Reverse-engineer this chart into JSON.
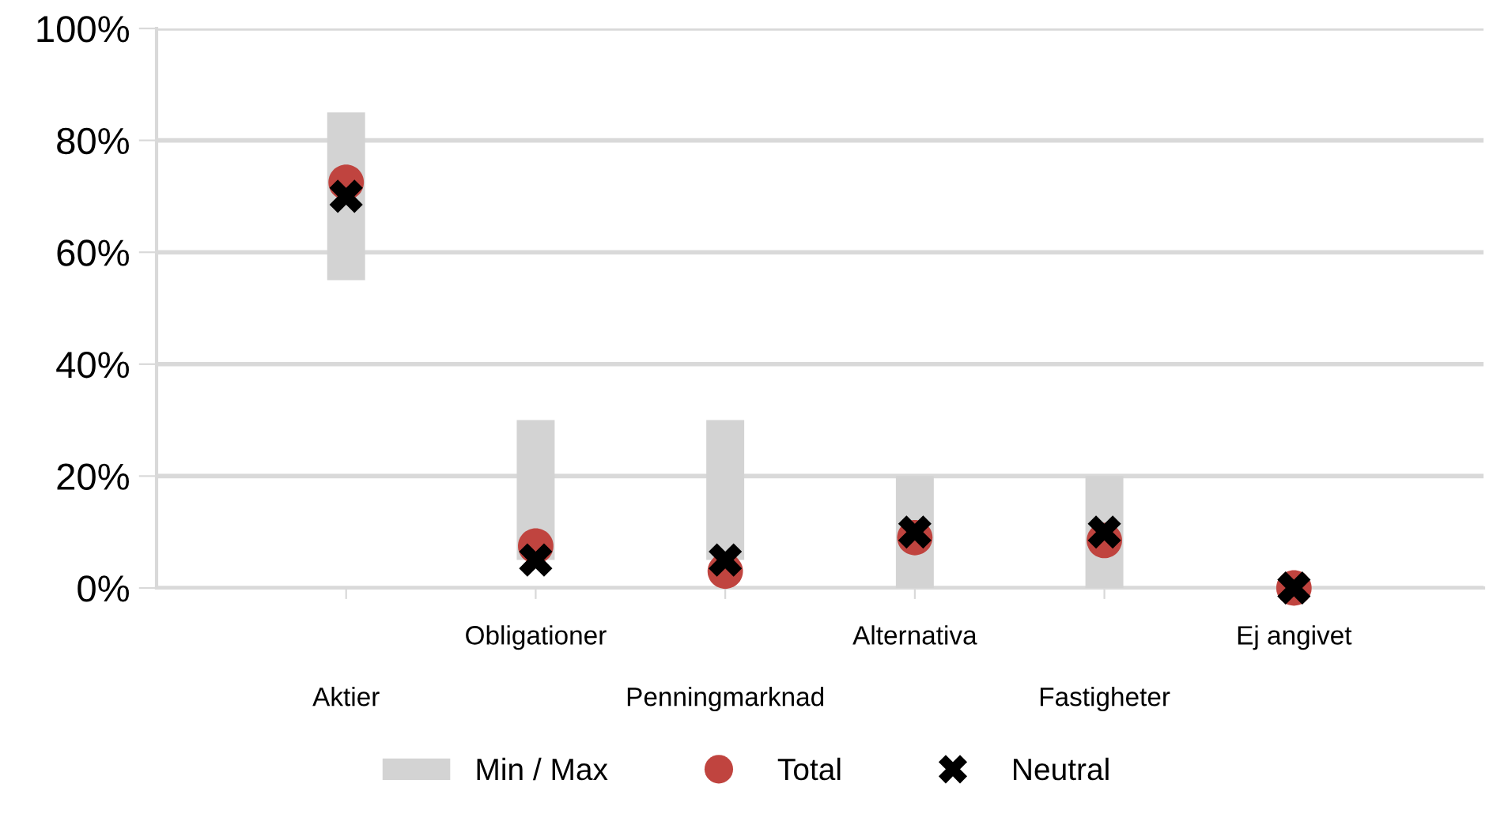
{
  "chart_data": {
    "type": "bar",
    "categories": [
      "Aktier",
      "Obligationer",
      "Penningmarknad",
      "Alternativa",
      "Fastigheter",
      "Ej angivet"
    ],
    "series": [
      {
        "name": "Min / Max",
        "color": "#d3d3d3",
        "base": [
          55,
          5,
          5,
          0,
          0,
          null
        ],
        "values": [
          30,
          25,
          25,
          20,
          20,
          null
        ]
      },
      {
        "name": "Total",
        "type": "scatter",
        "marker": "circle",
        "color": "#c0443f",
        "values": [
          72.5,
          7.5,
          3,
          9,
          8.5,
          0
        ]
      },
      {
        "name": "Neutral",
        "type": "scatter",
        "marker": "cross",
        "color": "#000000",
        "values": [
          70,
          5,
          5,
          10,
          10,
          0
        ]
      }
    ],
    "ylim": [
      0,
      100
    ],
    "yticks": [
      {
        "value": 0,
        "label": "0%"
      },
      {
        "value": 20,
        "label": "20%"
      },
      {
        "value": 40,
        "label": "40%"
      },
      {
        "value": 60,
        "label": "60%"
      },
      {
        "value": 80,
        "label": "80%"
      },
      {
        "value": 100,
        "label": "100%"
      }
    ],
    "grid": "y",
    "legend": "bottom"
  }
}
